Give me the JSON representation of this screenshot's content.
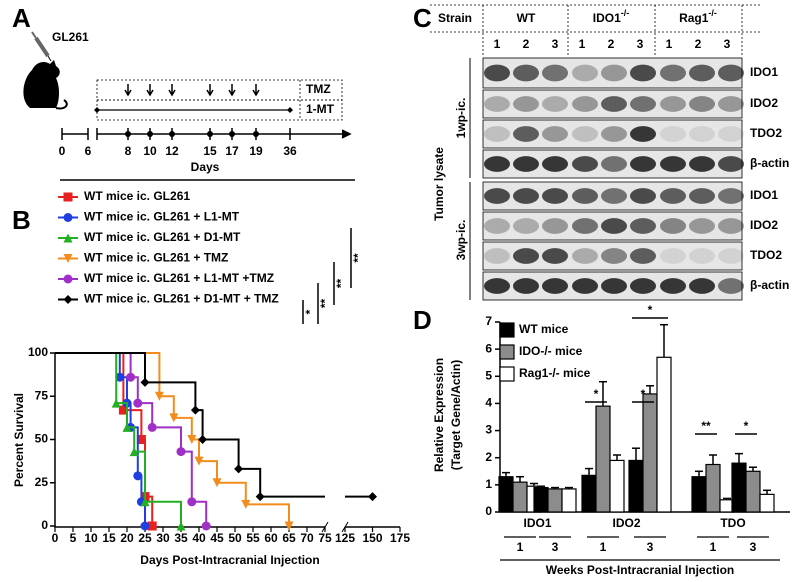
{
  "panel_labels": [
    "A",
    "B",
    "C",
    "D"
  ],
  "panel_a": {
    "cell_line": "GL261",
    "treatments": [
      "TMZ",
      "1-MT"
    ],
    "days": [
      0,
      6,
      8,
      10,
      12,
      15,
      17,
      19,
      36
    ],
    "axis_label": "Days"
  },
  "panel_c": {
    "strain_header": "Strain",
    "strains": [
      {
        "name": "WT"
      },
      {
        "name": "IDO1",
        "sup": "-/-"
      },
      {
        "name": "Rag1",
        "sup": "-/-"
      }
    ],
    "lanes": [
      "1",
      "2",
      "3"
    ],
    "row_labels": [
      "IDO1",
      "IDO2",
      "TDO2",
      "β-actin"
    ],
    "side_label": "Tumor lysate",
    "timepoints": [
      "1wp-ic.",
      "3wp-ic."
    ]
  },
  "chart_data": [
    {
      "type": "survival",
      "y_label": "Percent Survival",
      "x_label": "Days Post-Intracranial Injection",
      "xlim": [
        0,
        175
      ],
      "x_break": [
        75,
        125
      ],
      "xticks": [
        0,
        5,
        10,
        15,
        20,
        25,
        30,
        35,
        40,
        45,
        50,
        55,
        60,
        65,
        70,
        75,
        125,
        150,
        175
      ],
      "ylim": [
        0,
        100
      ],
      "yticks": [
        0,
        25,
        50,
        75,
        100
      ],
      "series": [
        {
          "name": "WT mice ic. GL261",
          "color": "#e8201f",
          "marker": "square",
          "x": [
            0,
            19,
            24,
            25,
            27
          ],
          "values": [
            100,
            67,
            50,
            17,
            0
          ]
        },
        {
          "name": "WT mice ic. GL261 + L1-MT",
          "color": "#1f3fe0",
          "marker": "circle",
          "x": [
            0,
            18,
            20,
            21,
            23,
            24,
            25
          ],
          "values": [
            100,
            86,
            71,
            57,
            29,
            14,
            0
          ]
        },
        {
          "name": "WT mice ic. GL261 + D1-MT",
          "color": "#22b022",
          "marker": "triangle-up",
          "x": [
            0,
            17,
            20,
            22,
            25,
            35
          ],
          "values": [
            100,
            71,
            57,
            43,
            14,
            0
          ]
        },
        {
          "name": "WT mice ic. GL261 + TMZ",
          "color": "#f28c1c",
          "marker": "triangle-down",
          "x": [
            0,
            29,
            33,
            38,
            40,
            45,
            53,
            65
          ],
          "values": [
            100,
            75,
            62.5,
            50,
            37.5,
            25,
            12.5,
            0
          ]
        },
        {
          "name": "WT mice ic. GL261 + L1-MT +TMZ",
          "color": "#a02fc8",
          "marker": "circle",
          "x": [
            0,
            21,
            23,
            27,
            35,
            38,
            42
          ],
          "values": [
            100,
            86,
            71,
            57,
            43,
            14,
            0
          ]
        },
        {
          "name": "WT mice ic. GL261 + D1-MT + TMZ",
          "color": "#000000",
          "marker": "diamond",
          "x": [
            0,
            25,
            39,
            41,
            51,
            57,
            150
          ],
          "values": [
            100,
            83,
            67,
            50,
            33,
            17,
            17
          ]
        }
      ],
      "significance": [
        "*",
        "**",
        "**",
        "**"
      ]
    },
    {
      "type": "bar",
      "y_label": [
        "Relative Expression",
        "(Target Gene/Actin)"
      ],
      "x_label": "Weeks Post-Intracranial Injection",
      "groups": [
        "IDO1",
        "IDO2",
        "TDO"
      ],
      "categories": [
        "1",
        "3",
        "1",
        "3",
        "1",
        "3"
      ],
      "ylim": [
        0,
        7
      ],
      "yticks": [
        0,
        1,
        2,
        3,
        4,
        5,
        6,
        7
      ],
      "series": [
        {
          "name": "WT mice",
          "color": "#000000",
          "values": [
            1.3,
            0.9,
            1.35,
            1.9,
            1.3,
            1.8
          ],
          "errors": [
            0.15,
            0.05,
            0.25,
            0.45,
            0.2,
            0.35
          ]
        },
        {
          "name": "IDO-/- mice",
          "color": "#8c8c8c",
          "values": [
            1.1,
            0.85,
            3.9,
            4.35,
            1.75,
            1.5
          ],
          "errors": [
            0.2,
            0.05,
            0.9,
            0.3,
            0.35,
            0.15
          ]
        },
        {
          "name": "Rag1-/- mice",
          "color": "#ffffff",
          "values": [
            0.95,
            0.85,
            1.9,
            5.7,
            0.45,
            0.65
          ],
          "errors": [
            0.1,
            0.05,
            0.2,
            1.2,
            0.05,
            0.15
          ]
        }
      ],
      "significance": [
        "*",
        "*",
        "*",
        "**",
        "*"
      ]
    }
  ]
}
